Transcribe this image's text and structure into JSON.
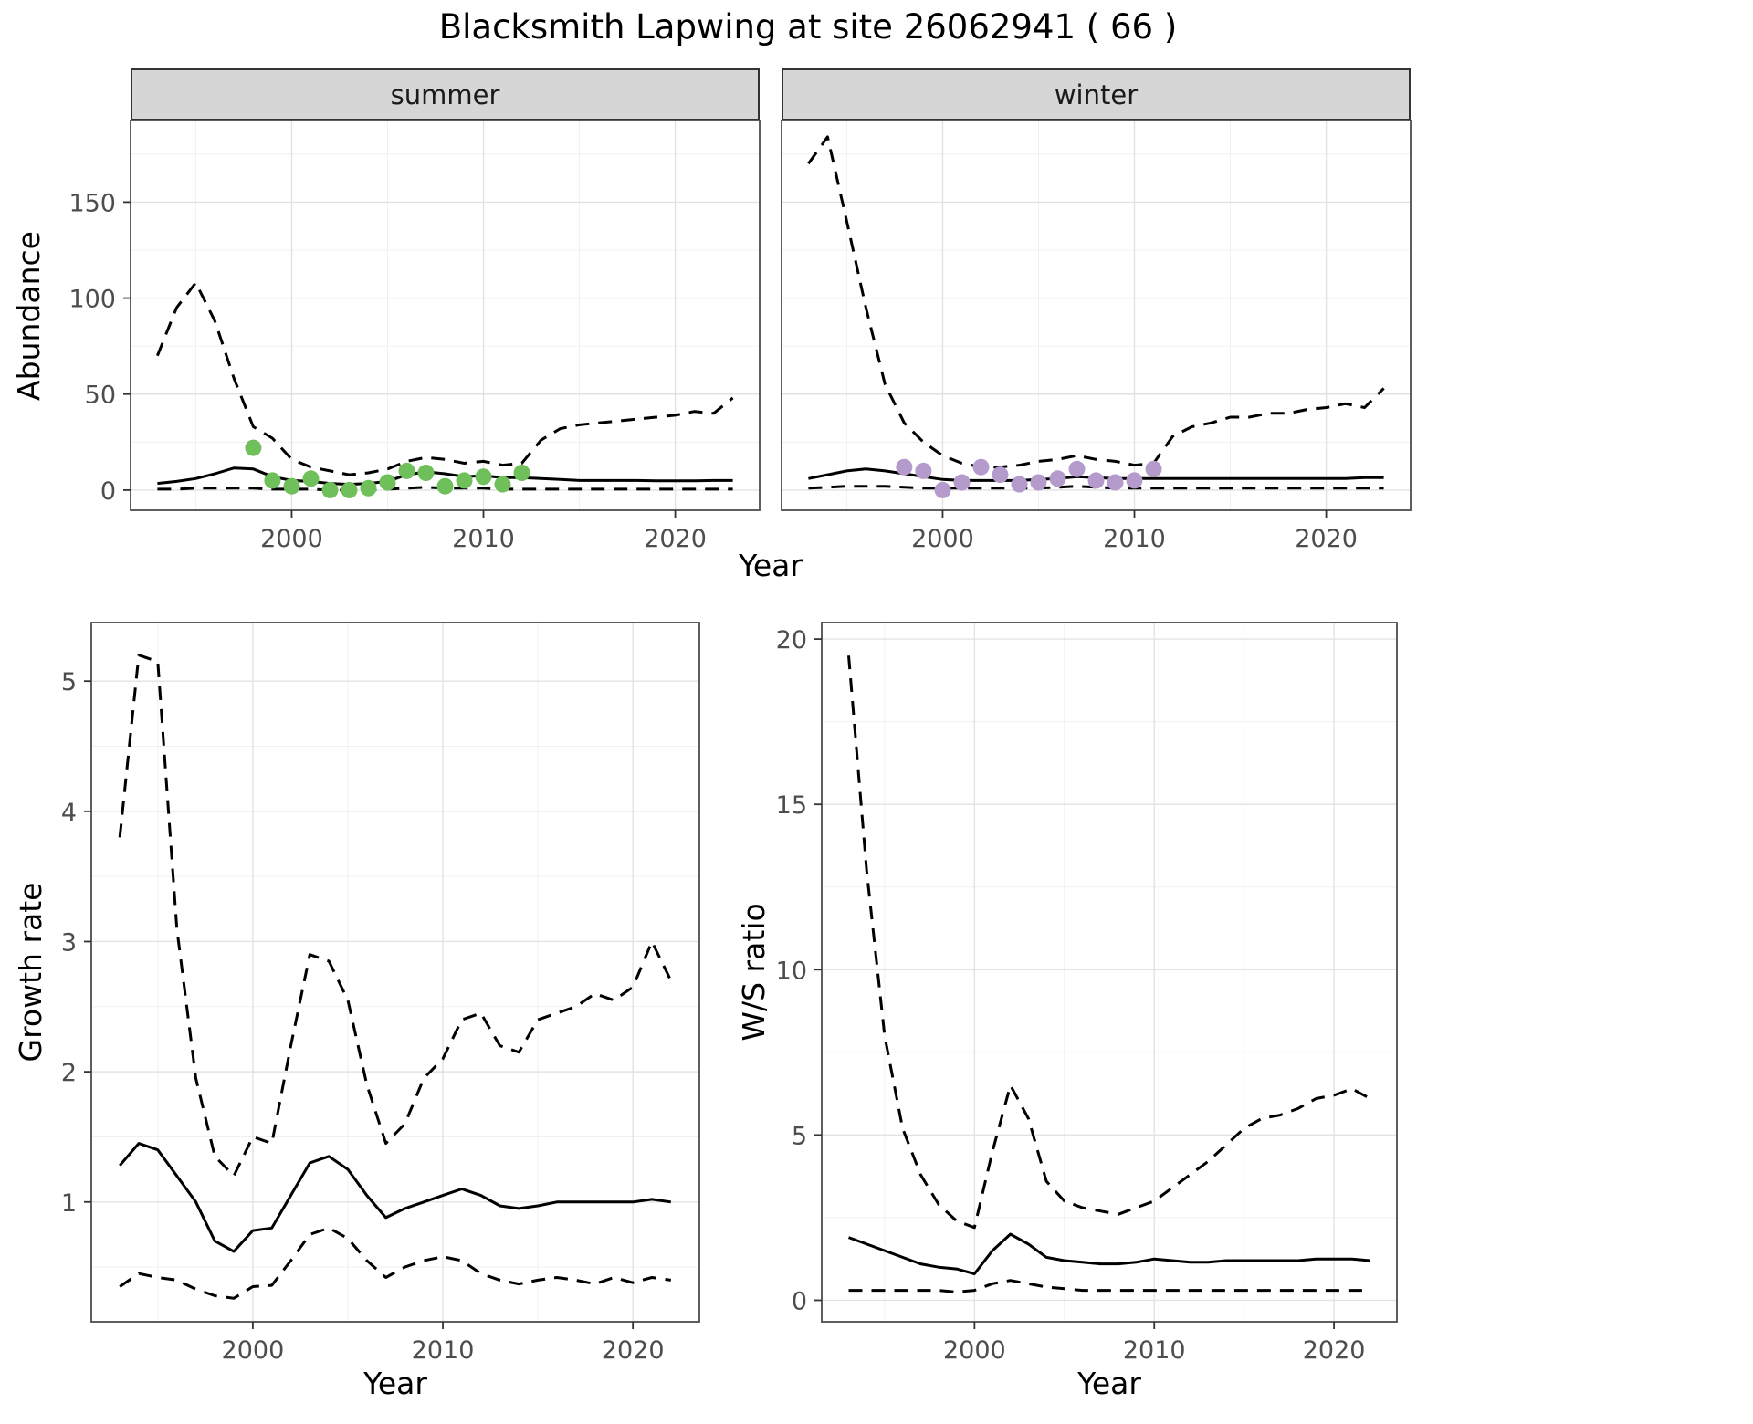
{
  "title": "Blacksmith Lapwing at site 26062941 ( 66 )",
  "colors": {
    "summer_points": "#6fbf5a",
    "winter_points": "#b59bcc",
    "line": "#000000",
    "strip_background": "#d6d6d6",
    "grid_major": "#e2e2e2",
    "grid_minor": "#f0f0f0",
    "panel_border": "#4d4d4d",
    "tick_text": "#4d4d4d"
  },
  "chart_data": [
    {
      "id": "abundance-summer",
      "type": "line",
      "facet_label": "summer",
      "xlabel": "Year",
      "ylabel": "Abundance",
      "grid": "major_and_minor",
      "legend": "none",
      "xlim": [
        1991.6,
        2024.4
      ],
      "ylim": [
        -10.5,
        192.5
      ],
      "xticks": [
        2000,
        2010,
        2020
      ],
      "yticks": [
        0,
        50,
        100,
        150
      ],
      "show_y_tick_labels": true,
      "x": [
        1993,
        1994,
        1995,
        1996,
        1997,
        1998,
        1999,
        2000,
        2001,
        2002,
        2003,
        2004,
        2005,
        2006,
        2007,
        2008,
        2009,
        2010,
        2011,
        2012,
        2013,
        2014,
        2015,
        2016,
        2017,
        2018,
        2019,
        2020,
        2021,
        2022,
        2023
      ],
      "series": [
        {
          "name": "estimate",
          "style": "solid",
          "color": "#000000",
          "values": [
            3.5,
            4.5,
            6,
            8.5,
            11.5,
            11,
            7,
            5,
            4.5,
            3.5,
            3,
            3.5,
            4.5,
            8,
            9.5,
            8.5,
            7,
            7.5,
            6.5,
            6.5,
            6,
            5.5,
            5,
            5,
            5,
            5,
            4.8,
            4.8,
            4.8,
            5,
            5
          ]
        },
        {
          "name": "upper-ci",
          "style": "dashed",
          "color": "#000000",
          "values": [
            70,
            95,
            108,
            88,
            58,
            33,
            27,
            16,
            12,
            10,
            8,
            9,
            11,
            15,
            17,
            16,
            14,
            15,
            13,
            14,
            26,
            32,
            34,
            35,
            36,
            37,
            38,
            39,
            41,
            40,
            48
          ]
        },
        {
          "name": "lower-ci",
          "style": "dashed",
          "color": "#000000",
          "values": [
            0.5,
            0.5,
            1,
            1,
            1,
            1,
            0.5,
            0.5,
            0.5,
            0,
            0,
            0,
            0.5,
            1,
            1.5,
            1,
            1,
            1,
            0.5,
            0.5,
            0.5,
            0.5,
            0.5,
            0.5,
            0.5,
            0.5,
            0.5,
            0.5,
            0.5,
            0.5,
            0.5
          ]
        }
      ],
      "points": {
        "name": "observed-counts-summer",
        "color": "#6fbf5a",
        "x": [
          1998,
          1999,
          2000,
          2001,
          2002,
          2003,
          2004,
          2005,
          2006,
          2007,
          2008,
          2009,
          2010,
          2011,
          2012
        ],
        "y": [
          22,
          5,
          2,
          6,
          0,
          0,
          1,
          4,
          10,
          9,
          2,
          5,
          7,
          3,
          9
        ]
      }
    },
    {
      "id": "abundance-winter",
      "type": "line",
      "facet_label": "winter",
      "xlabel": "Year",
      "ylabel": "Abundance",
      "grid": "major_and_minor",
      "legend": "none",
      "xlim": [
        1991.6,
        2024.4
      ],
      "ylim": [
        -10.5,
        192.5
      ],
      "xticks": [
        2000,
        2010,
        2020
      ],
      "yticks": [
        0,
        50,
        100,
        150
      ],
      "show_y_tick_labels": false,
      "x": [
        1993,
        1994,
        1995,
        1996,
        1997,
        1998,
        1999,
        2000,
        2001,
        2002,
        2003,
        2004,
        2005,
        2006,
        2007,
        2008,
        2009,
        2010,
        2011,
        2012,
        2013,
        2014,
        2015,
        2016,
        2017,
        2018,
        2019,
        2020,
        2021,
        2022,
        2023
      ],
      "series": [
        {
          "name": "estimate",
          "style": "solid",
          "color": "#000000",
          "values": [
            6,
            8,
            10,
            11,
            10,
            8.5,
            7,
            5.5,
            5,
            5,
            5,
            5,
            5.5,
            6,
            7,
            6.5,
            6,
            6,
            6,
            6,
            6,
            6,
            6,
            6,
            6,
            6,
            6,
            6,
            6,
            6.5,
            6.5
          ]
        },
        {
          "name": "upper-ci",
          "style": "dashed",
          "color": "#000000",
          "values": [
            170,
            184,
            140,
            95,
            55,
            35,
            25,
            18,
            14,
            12,
            12,
            13,
            15,
            16,
            18,
            16,
            15,
            13,
            14,
            28,
            33,
            35,
            38,
            38,
            40,
            40,
            42,
            43,
            45,
            43,
            53
          ]
        },
        {
          "name": "lower-ci",
          "style": "dashed",
          "color": "#000000",
          "values": [
            1,
            1.5,
            2,
            2,
            2,
            1.5,
            1,
            1,
            1,
            1,
            1,
            1,
            1,
            1.5,
            2,
            1.5,
            1,
            1,
            1,
            1,
            1,
            1,
            1,
            1,
            1,
            1,
            1,
            1,
            1,
            1,
            1
          ]
        }
      ],
      "points": {
        "name": "observed-counts-winter",
        "color": "#b59bcc",
        "x": [
          1998,
          1999,
          2000,
          2001,
          2002,
          2003,
          2004,
          2005,
          2006,
          2007,
          2008,
          2009,
          2010,
          2011
        ],
        "y": [
          12,
          10,
          0,
          4,
          12,
          8,
          3,
          4,
          6,
          11,
          5,
          4,
          5,
          11
        ]
      }
    },
    {
      "id": "growth-rate",
      "type": "line",
      "facet_label": "",
      "xlabel": "Year",
      "ylabel": "Growth rate",
      "grid": "major_and_minor",
      "legend": "none",
      "xlim": [
        1991.5,
        2023.5
      ],
      "ylim": [
        0.08,
        5.45
      ],
      "xticks": [
        2000,
        2010,
        2020
      ],
      "yticks": [
        1,
        2,
        3,
        4,
        5
      ],
      "show_y_tick_labels": true,
      "x": [
        1993,
        1994,
        1995,
        1996,
        1997,
        1998,
        1999,
        2000,
        2001,
        2002,
        2003,
        2004,
        2005,
        2006,
        2007,
        2008,
        2009,
        2010,
        2011,
        2012,
        2013,
        2014,
        2015,
        2016,
        2017,
        2018,
        2019,
        2020,
        2021,
        2022
      ],
      "series": [
        {
          "name": "estimate",
          "style": "solid",
          "color": "#000000",
          "values": [
            1.28,
            1.45,
            1.4,
            1.2,
            1.0,
            0.7,
            0.62,
            0.78,
            0.8,
            1.05,
            1.3,
            1.35,
            1.25,
            1.05,
            0.88,
            0.95,
            1.0,
            1.05,
            1.1,
            1.05,
            0.97,
            0.95,
            0.97,
            1.0,
            1.0,
            1.0,
            1.0,
            1.0,
            1.02,
            1.0
          ]
        },
        {
          "name": "upper-ci",
          "style": "dashed",
          "color": "#000000",
          "values": [
            3.8,
            5.2,
            5.15,
            3.1,
            1.95,
            1.35,
            1.2,
            1.5,
            1.45,
            2.2,
            2.9,
            2.85,
            2.55,
            1.9,
            1.45,
            1.6,
            1.95,
            2.1,
            2.4,
            2.45,
            2.2,
            2.15,
            2.4,
            2.45,
            2.5,
            2.6,
            2.55,
            2.65,
            3.0,
            2.7
          ]
        },
        {
          "name": "lower-ci",
          "style": "dashed",
          "color": "#000000",
          "values": [
            0.35,
            0.45,
            0.42,
            0.4,
            0.33,
            0.28,
            0.26,
            0.35,
            0.36,
            0.55,
            0.75,
            0.8,
            0.72,
            0.55,
            0.42,
            0.5,
            0.55,
            0.58,
            0.55,
            0.45,
            0.4,
            0.37,
            0.4,
            0.42,
            0.4,
            0.37,
            0.42,
            0.38,
            0.42,
            0.4
          ]
        }
      ]
    },
    {
      "id": "ws-ratio",
      "type": "line",
      "facet_label": "",
      "xlabel": "Year",
      "ylabel": "W/S ratio",
      "grid": "major_and_minor",
      "legend": "none",
      "xlim": [
        1991.5,
        2023.5
      ],
      "ylim": [
        -0.65,
        20.5
      ],
      "xticks": [
        2000,
        2010,
        2020
      ],
      "yticks": [
        0,
        5,
        10,
        15,
        20
      ],
      "show_y_tick_labels": true,
      "x": [
        1993,
        1994,
        1995,
        1996,
        1997,
        1998,
        1999,
        2000,
        2001,
        2002,
        2003,
        2004,
        2005,
        2006,
        2007,
        2008,
        2009,
        2010,
        2011,
        2012,
        2013,
        2014,
        2015,
        2016,
        2017,
        2018,
        2019,
        2020,
        2021,
        2022
      ],
      "series": [
        {
          "name": "estimate",
          "style": "solid",
          "color": "#000000",
          "values": [
            1.9,
            1.7,
            1.5,
            1.3,
            1.1,
            1.0,
            0.95,
            0.8,
            1.5,
            2.0,
            1.7,
            1.3,
            1.2,
            1.15,
            1.1,
            1.1,
            1.15,
            1.25,
            1.2,
            1.15,
            1.15,
            1.2,
            1.2,
            1.2,
            1.2,
            1.2,
            1.25,
            1.25,
            1.25,
            1.2
          ]
        },
        {
          "name": "upper-ci",
          "style": "dashed",
          "color": "#000000",
          "values": [
            19.5,
            13,
            8,
            5.2,
            3.8,
            2.9,
            2.4,
            2.2,
            4.5,
            6.5,
            5.5,
            3.6,
            3.0,
            2.8,
            2.7,
            2.6,
            2.8,
            3.0,
            3.4,
            3.8,
            4.2,
            4.7,
            5.2,
            5.5,
            5.6,
            5.8,
            6.1,
            6.2,
            6.4,
            6.1
          ]
        },
        {
          "name": "lower-ci",
          "style": "dashed",
          "color": "#000000",
          "values": [
            0.3,
            0.3,
            0.3,
            0.3,
            0.3,
            0.3,
            0.25,
            0.3,
            0.5,
            0.6,
            0.5,
            0.4,
            0.35,
            0.3,
            0.3,
            0.3,
            0.3,
            0.3,
            0.3,
            0.3,
            0.3,
            0.3,
            0.3,
            0.3,
            0.3,
            0.3,
            0.3,
            0.3,
            0.3,
            0.3
          ]
        }
      ]
    }
  ]
}
